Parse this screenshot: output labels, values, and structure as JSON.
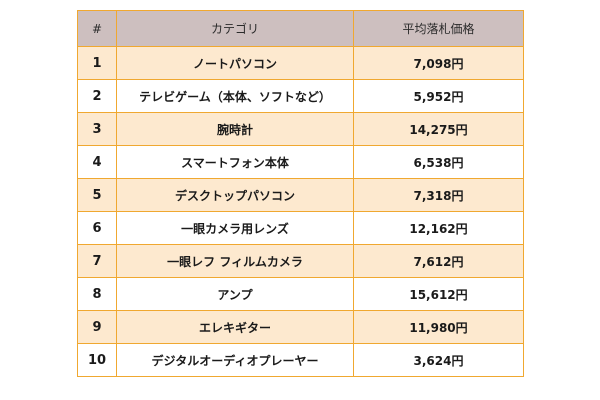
{
  "table": {
    "headers": {
      "rank": "#",
      "category": "カテゴリ",
      "price": "平均落札価格"
    },
    "rows": [
      {
        "rank": "1",
        "category": "ノートパソコン",
        "price": "7,098円"
      },
      {
        "rank": "2",
        "category": "テレビゲーム（本体、ソフトなど）",
        "price": "5,952円"
      },
      {
        "rank": "3",
        "category": "腕時計",
        "price": "14,275円"
      },
      {
        "rank": "4",
        "category": "スマートフォン本体",
        "price": "6,538円"
      },
      {
        "rank": "5",
        "category": "デスクトップパソコン",
        "price": "7,318円"
      },
      {
        "rank": "6",
        "category": "一眼カメラ用レンズ",
        "price": "12,162円"
      },
      {
        "rank": "7",
        "category": "一眼レフ フィルムカメラ",
        "price": "7,612円"
      },
      {
        "rank": "8",
        "category": "アンプ",
        "price": "15,612円"
      },
      {
        "rank": "9",
        "category": "エレキギター",
        "price": "11,980円"
      },
      {
        "rank": "10",
        "category": "デジタルオーディオプレーヤー",
        "price": "3,624円"
      }
    ]
  },
  "colors": {
    "header_background": "#cdbfbf",
    "odd_row_background": "#fde9cf",
    "even_row_background": "#ffffff",
    "border": "#f0a830"
  }
}
